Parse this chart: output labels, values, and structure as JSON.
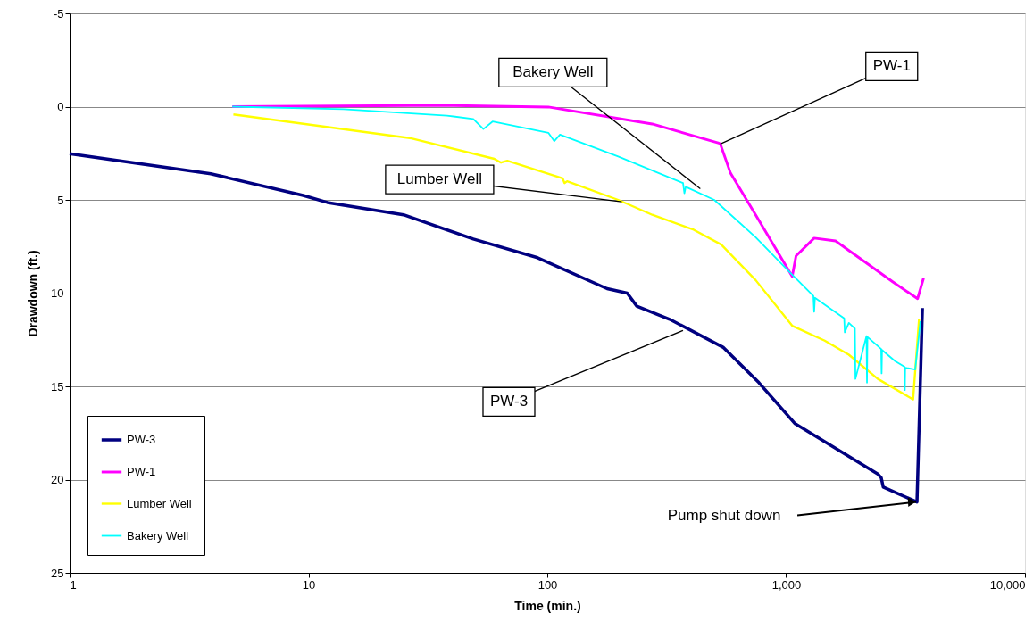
{
  "chart_data": {
    "type": "line",
    "xlabel": "Time (min.)",
    "ylabel": "Drawdown (ft.)",
    "log": "x",
    "grid": "y",
    "legend": "bottom left",
    "xlim": [
      1,
      10000
    ],
    "ylim": [
      25,
      -5
    ],
    "xticks": [
      1,
      10,
      100,
      {
        "value": 1000,
        "label": "1,000"
      },
      {
        "value": 10000,
        "label": "10,000"
      }
    ],
    "yticks": [
      -5,
      0,
      5,
      10,
      15,
      20,
      25
    ],
    "series": [
      {
        "name": "PW-3",
        "color": "#000080",
        "x": [
          1,
          3.9,
          9.5,
          12,
          25,
          49,
          91,
          178,
          216,
          237,
          325,
          544,
          769,
          1090,
          2420,
          2500,
          2550,
          3530,
          3720
        ],
        "values": [
          2.52,
          3.6,
          4.76,
          5.14,
          5.8,
          7.1,
          8.1,
          9.76,
          10.0,
          10.7,
          11.4,
          12.9,
          14.8,
          17.0,
          19.7,
          19.9,
          20.4,
          21.2,
          10.8
        ]
      },
      {
        "name": "PW-1",
        "color": "#ff00ff",
        "x": [
          4.8,
          37.9,
          101,
          275,
          519,
          530,
          585,
          745,
          1060,
          1100,
          1310,
          1610,
          2800,
          3550,
          3760
        ],
        "values": [
          0.0,
          -0.07,
          0.02,
          0.93,
          1.94,
          2.0,
          3.57,
          5.8,
          9.1,
          8.0,
          7.05,
          7.2,
          9.4,
          10.3,
          9.2
        ]
      },
      {
        "name": "Lumber Well",
        "color": "#ffff00",
        "x": [
          4.85,
          27,
          60,
          64,
          68,
          116,
          118,
          121,
          198,
          275,
          410,
          535,
          745,
          1060,
          1450,
          1830,
          2420,
          3400,
          3600
        ],
        "values": [
          0.42,
          1.7,
          2.8,
          3.0,
          2.9,
          3.85,
          4.1,
          4.0,
          5.0,
          5.8,
          6.6,
          7.4,
          9.3,
          11.75,
          12.55,
          13.3,
          14.6,
          15.7,
          11.4
        ]
      },
      {
        "name": "Bakery Well",
        "color": "#00ffff",
        "x": [
          4.8,
          14,
          38,
          49,
          54,
          59,
          101,
          107,
          113,
          198,
          370,
          375,
          380,
          500,
          745,
          1040,
          1300,
          1310,
          1320,
          1750,
          1760,
          1830,
          1940,
          1950,
          2170,
          2180,
          2190,
          2500,
          2510,
          2520,
          2860,
          3130,
          3140,
          3150,
          3470,
          3650
        ],
        "values": [
          0.0,
          0.14,
          0.48,
          0.66,
          1.2,
          0.8,
          1.4,
          1.85,
          1.5,
          2.67,
          4.1,
          4.65,
          4.3,
          5.0,
          7.0,
          8.9,
          10.15,
          11.0,
          10.25,
          11.35,
          12.1,
          11.6,
          11.9,
          14.6,
          12.3,
          14.8,
          12.35,
          13.0,
          14.3,
          13.05,
          13.65,
          13.95,
          15.2,
          14.0,
          14.1,
          11.5
        ]
      }
    ],
    "annotations": [
      {
        "text": "Bakery Well",
        "x": 437,
        "y": 4.4
      },
      {
        "text": "PW-1",
        "x": 530,
        "y": 2.0
      },
      {
        "text": "Lumber Well",
        "x": 205,
        "y": 5.1
      },
      {
        "text": "PW-3",
        "x": 370,
        "y": 12.0
      },
      {
        "text": "Pump shut down",
        "x": 3500,
        "y": 21.2
      }
    ]
  }
}
